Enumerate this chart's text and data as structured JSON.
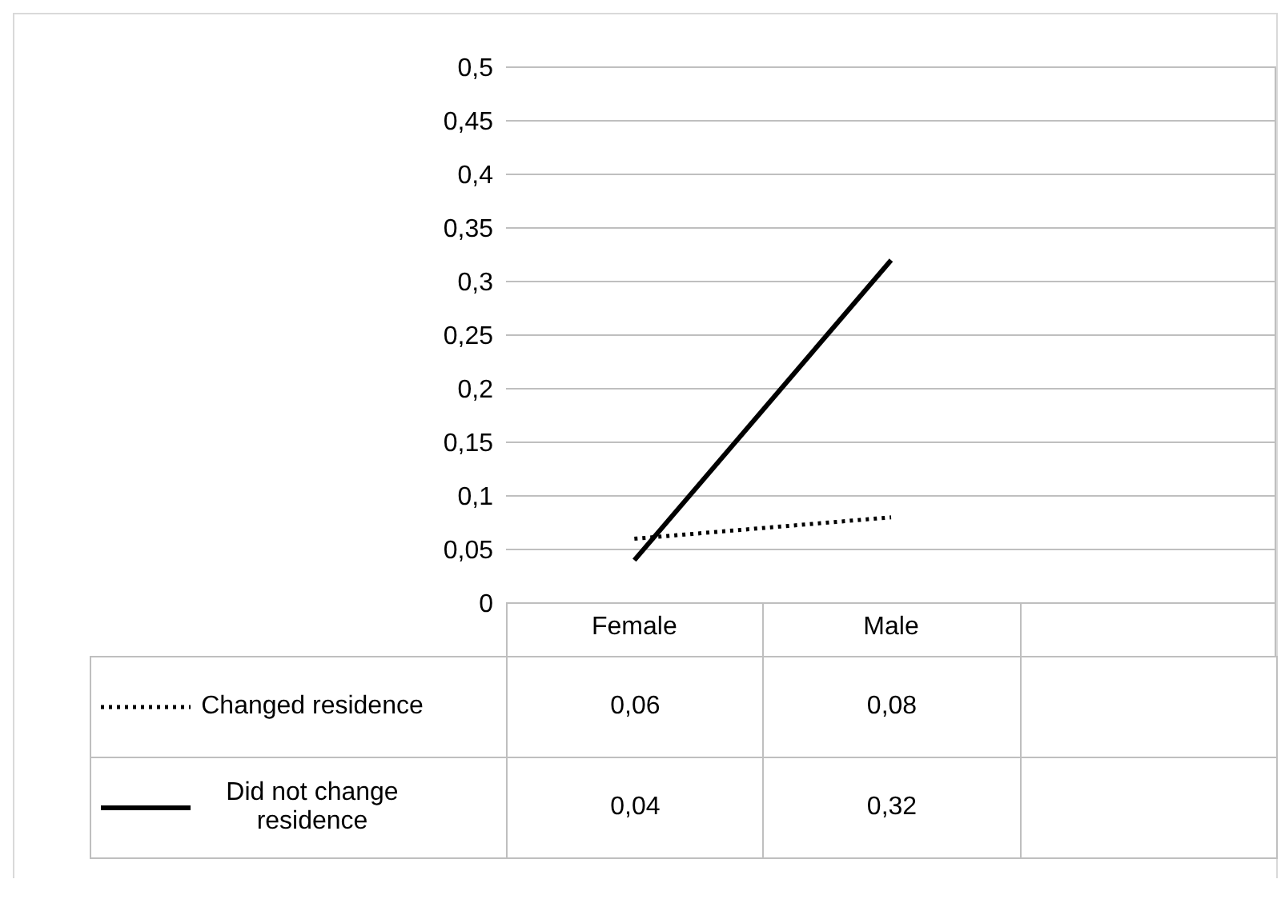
{
  "chart_data": {
    "type": "line",
    "categories": [
      "Female",
      "Male",
      null
    ],
    "series": [
      {
        "name": "Changed residence",
        "color": "#000000",
        "line_style": "dotted",
        "values": [
          0.06,
          0.08,
          null
        ],
        "value_labels": [
          "0,06",
          "0,08",
          null
        ]
      },
      {
        "name": "Did not change residence",
        "color": "#000000",
        "line_style": "solid",
        "values": [
          0.04,
          0.32,
          null
        ],
        "value_labels": [
          "0,04",
          "0,32",
          null
        ]
      }
    ],
    "ylim": [
      0,
      0.5
    ],
    "yticks": [
      0,
      {
        "value": 0.05,
        "label": "0,05"
      },
      {
        "value": 0.1,
        "label": "0,1"
      },
      {
        "value": 0.15,
        "label": "0,15"
      },
      {
        "value": 0.2,
        "label": "0,2"
      },
      {
        "value": 0.25,
        "label": "0,25"
      },
      {
        "value": 0.3,
        "label": "0,3"
      },
      {
        "value": 0.35,
        "label": "0,35"
      },
      {
        "value": 0.4,
        "label": "0,4"
      },
      {
        "value": 0.45,
        "label": "0,45"
      },
      {
        "value": 0.5,
        "label": "0,5"
      }
    ],
    "grid": "y",
    "legend": "bottom left",
    "marker": "none"
  }
}
